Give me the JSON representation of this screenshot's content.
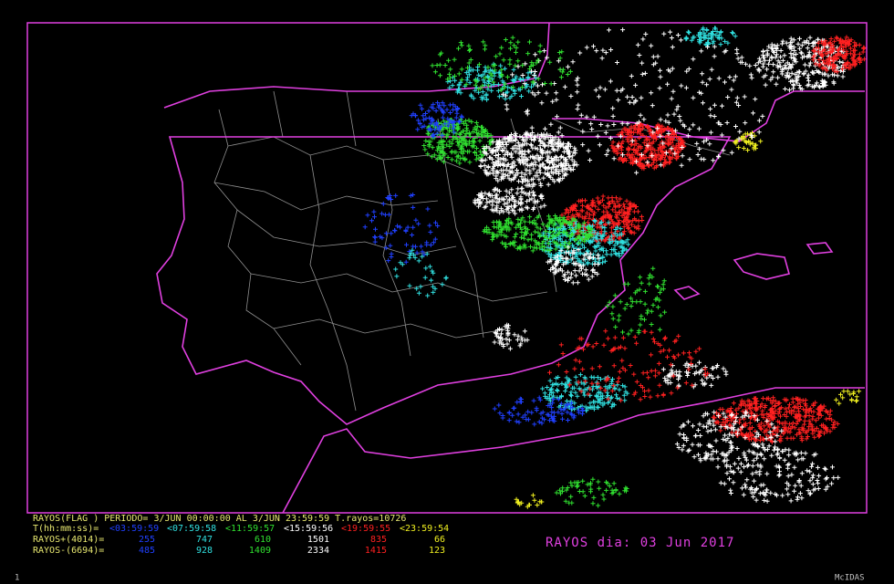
{
  "header": {
    "line": "RAYOS(FLAG ) PERIODO= 3/JUN 00:00:00 AL  3/JUN 23:59:59  T.rayos=10726"
  },
  "table": {
    "time_label": "T(hh:mm:ss)=",
    "intervals": [
      "<03:59:59",
      "<07:59:58",
      "<11:59:57",
      "<15:59:56",
      "<19:59:55",
      "<23:59:54"
    ],
    "rows": [
      {
        "label": "RAYOS+(4014)=",
        "values": [
          255,
          747,
          610,
          1501,
          835,
          66
        ]
      },
      {
        "label": "RAYOS-(6694)=",
        "values": [
          485,
          928,
          1409,
          2334,
          1415,
          123
        ]
      }
    ]
  },
  "title": "RAYOS dia: 03 Jun 2017",
  "footer": {
    "frame": "1",
    "software": "McIDAS"
  }
}
